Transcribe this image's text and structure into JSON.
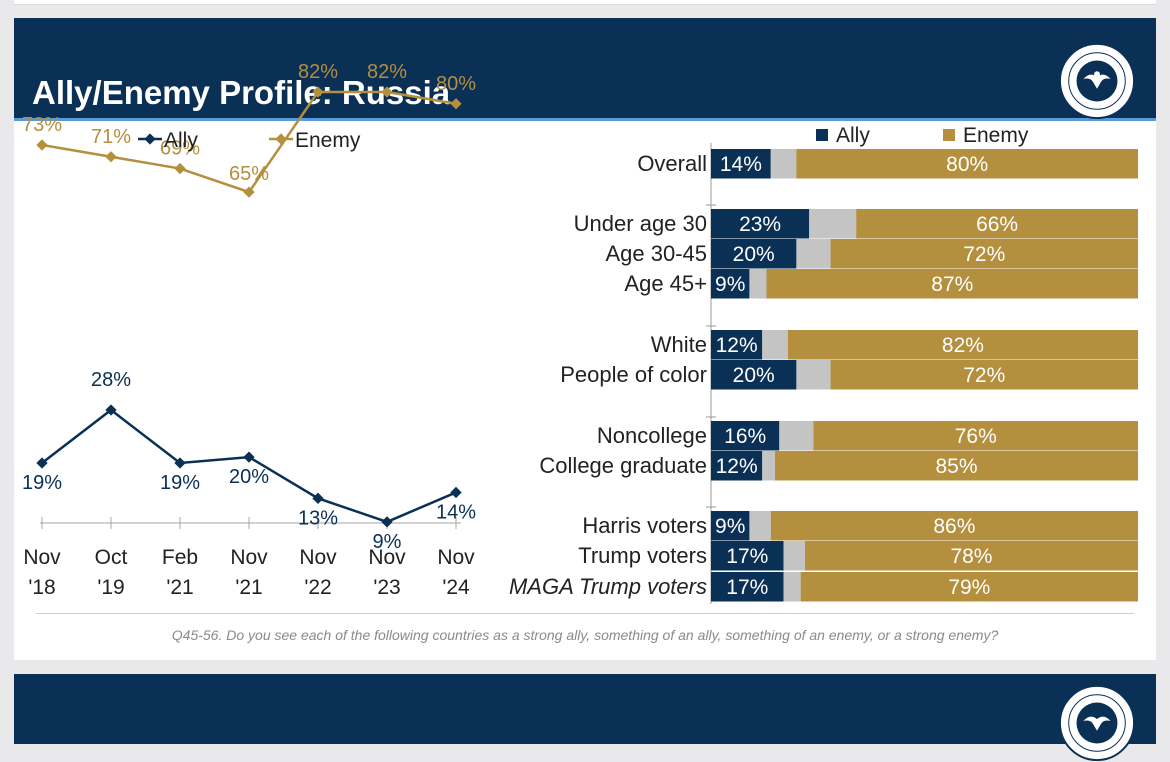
{
  "slide": {
    "title": "Ally/Enemy Profile: Russia",
    "seal_label": "RONALD REAGAN PRESIDENTIAL FOUNDATION & INSTITUTE",
    "footnote": "Q45-56. Do you see each of the following countries as a strong ally, something of an ally, something of an enemy, or a strong enemy?"
  },
  "colors": {
    "ally": "#0a3055",
    "enemy": "#b48f3d",
    "neither": "#c4c4c4",
    "header": "#0a3055",
    "accent": "#5b9bd5"
  },
  "chart_data": [
    {
      "type": "line",
      "x": [
        "Nov '18",
        "Oct '19",
        "Feb '21",
        "Nov '21",
        "Nov '22",
        "Nov '23",
        "Nov '24"
      ],
      "x_lines": [
        [
          "Nov",
          "'18"
        ],
        [
          "Oct",
          "'19"
        ],
        [
          "Feb",
          "'21"
        ],
        [
          "Nov",
          "'21"
        ],
        [
          "Nov",
          "'22"
        ],
        [
          "Nov",
          "'23"
        ],
        [
          "Nov",
          "'24"
        ]
      ],
      "series": [
        {
          "name": "Ally",
          "values": [
            19,
            28,
            19,
            20,
            13,
            9,
            14
          ],
          "labels": [
            "19%",
            "28%",
            "19%",
            "20%",
            "13%",
            "9%",
            "14%"
          ]
        },
        {
          "name": "Enemy",
          "values": [
            73,
            71,
            69,
            65,
            82,
            82,
            80
          ],
          "labels": [
            "73%",
            "71%",
            "69%",
            "65%",
            "82%",
            "82%",
            "80%"
          ]
        }
      ],
      "legend": "top-left",
      "grid": false
    },
    {
      "type": "bar",
      "orientation": "horizontal",
      "stacked": true,
      "legend": [
        "Ally",
        "Enemy"
      ],
      "categories": [
        "Overall",
        "Under age 30",
        "Age 30-45",
        "Age 45+",
        "White",
        "People of color",
        "Noncollege",
        "College graduate",
        "Harris voters",
        "Trump voters",
        "MAGA Trump voters"
      ],
      "groups": [
        [
          0
        ],
        [
          1,
          2,
          3
        ],
        [
          4,
          5
        ],
        [
          6,
          7
        ],
        [
          8,
          9,
          10
        ]
      ],
      "italic_categories": [
        "MAGA Trump voters"
      ],
      "ally": [
        14,
        23,
        20,
        9,
        12,
        20,
        16,
        12,
        9,
        17,
        17
      ],
      "ally_labels": [
        "14%",
        "23%",
        "20%",
        "9%",
        "12%",
        "20%",
        "16%",
        "12%",
        "9%",
        "17%",
        "17%"
      ],
      "enemy": [
        80,
        66,
        72,
        87,
        82,
        72,
        76,
        85,
        86,
        78,
        79
      ],
      "enemy_labels": [
        "80%",
        "66%",
        "72%",
        "87%",
        "82%",
        "72%",
        "76%",
        "85%",
        "86%",
        "78%",
        "79%"
      ]
    }
  ]
}
